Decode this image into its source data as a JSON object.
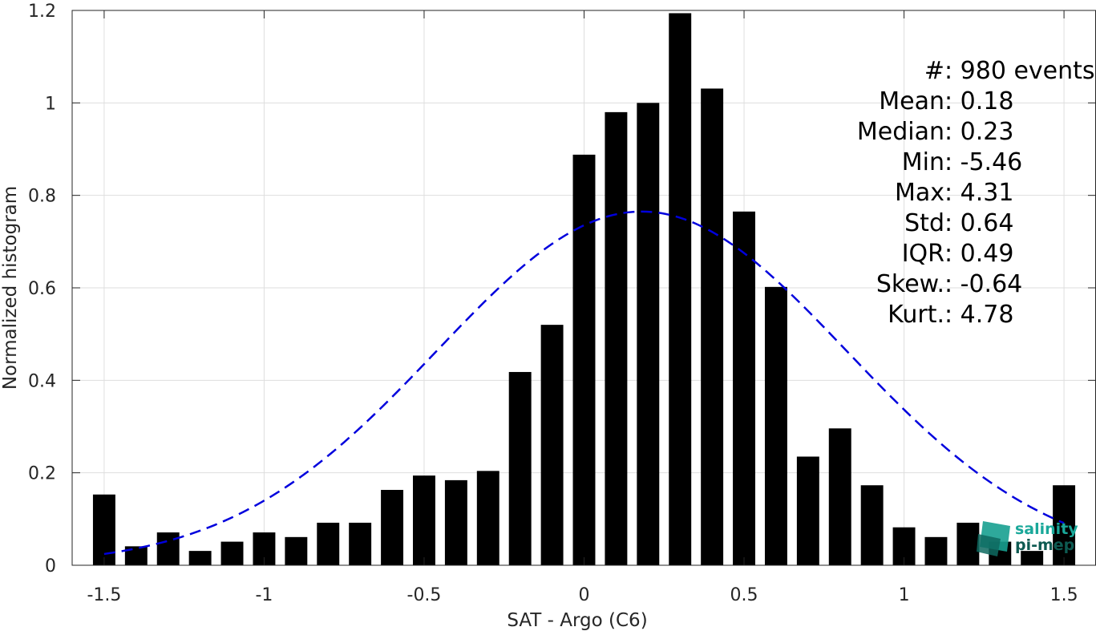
{
  "chart_data": {
    "type": "bar",
    "xlabel": "SAT - Argo (C6)",
    "ylabel": "Normalized histogram",
    "xlim": [
      -1.6,
      1.6
    ],
    "ylim": [
      0,
      1.2
    ],
    "xticks": [
      -1.5,
      -1,
      -0.5,
      0,
      0.5,
      1,
      1.5
    ],
    "xtick_labels": [
      "-1.5",
      "-1",
      "-0.5",
      "0",
      "0.5",
      "1",
      "1.5"
    ],
    "yticks": [
      0,
      0.2,
      0.4,
      0.6,
      0.8,
      1,
      1.2
    ],
    "ytick_labels": [
      "0",
      "0.2",
      "0.4",
      "0.6",
      "0.8",
      "1",
      "1.2"
    ],
    "grid": true,
    "bar_color": "#000000",
    "bin_width": 0.1,
    "x": [
      -1.5,
      -1.4,
      -1.3,
      -1.2,
      -1.1,
      -1.0,
      -0.9,
      -0.8,
      -0.7,
      -0.6,
      -0.5,
      -0.4,
      -0.3,
      -0.2,
      -0.1,
      0.0,
      0.1,
      0.2,
      0.3,
      0.4,
      0.5,
      0.6,
      0.7,
      0.8,
      0.9,
      1.0,
      1.1,
      1.2,
      1.3,
      1.4,
      1.5
    ],
    "values": [
      0.153,
      0.041,
      0.071,
      0.031,
      0.051,
      0.071,
      0.061,
      0.092,
      0.092,
      0.163,
      0.194,
      0.184,
      0.204,
      0.418,
      0.52,
      0.888,
      0.98,
      1.0,
      1.194,
      1.031,
      0.765,
      0.602,
      0.235,
      0.296,
      0.173,
      0.082,
      0.061,
      0.092,
      0.051,
      0.031,
      0.173
    ],
    "fit": {
      "type": "normal",
      "mean": 0.18,
      "std": 0.64,
      "peak": 0.765,
      "x_range": [
        -1.5,
        1.5
      ],
      "color": "#0000dd",
      "style": "dashed"
    },
    "stats": [
      {
        "label": "#",
        "sep": " : ",
        "value": "980 events"
      },
      {
        "label": "Mean",
        "sep": " : ",
        "value": "0.18"
      },
      {
        "label": "Median",
        "sep": " : ",
        "value": "0.23"
      },
      {
        "label": "Min",
        "sep": " : ",
        "value": "-5.46"
      },
      {
        "label": "Max",
        "sep": " : ",
        "value": "4.31"
      },
      {
        "label": "Std",
        "sep": " : ",
        "value": "0.64"
      },
      {
        "label": "IQR",
        "sep": " : ",
        "value": "0.49"
      },
      {
        "label": "Skew.",
        "sep": " : ",
        "value": "-0.64"
      },
      {
        "label": "Kurt.",
        "sep": " : ",
        "value": "4.78"
      }
    ]
  },
  "logo": {
    "line1": "salinity",
    "line2": "pi-mep",
    "color1": "#1aa89a",
    "color2": "#0e5a52"
  }
}
